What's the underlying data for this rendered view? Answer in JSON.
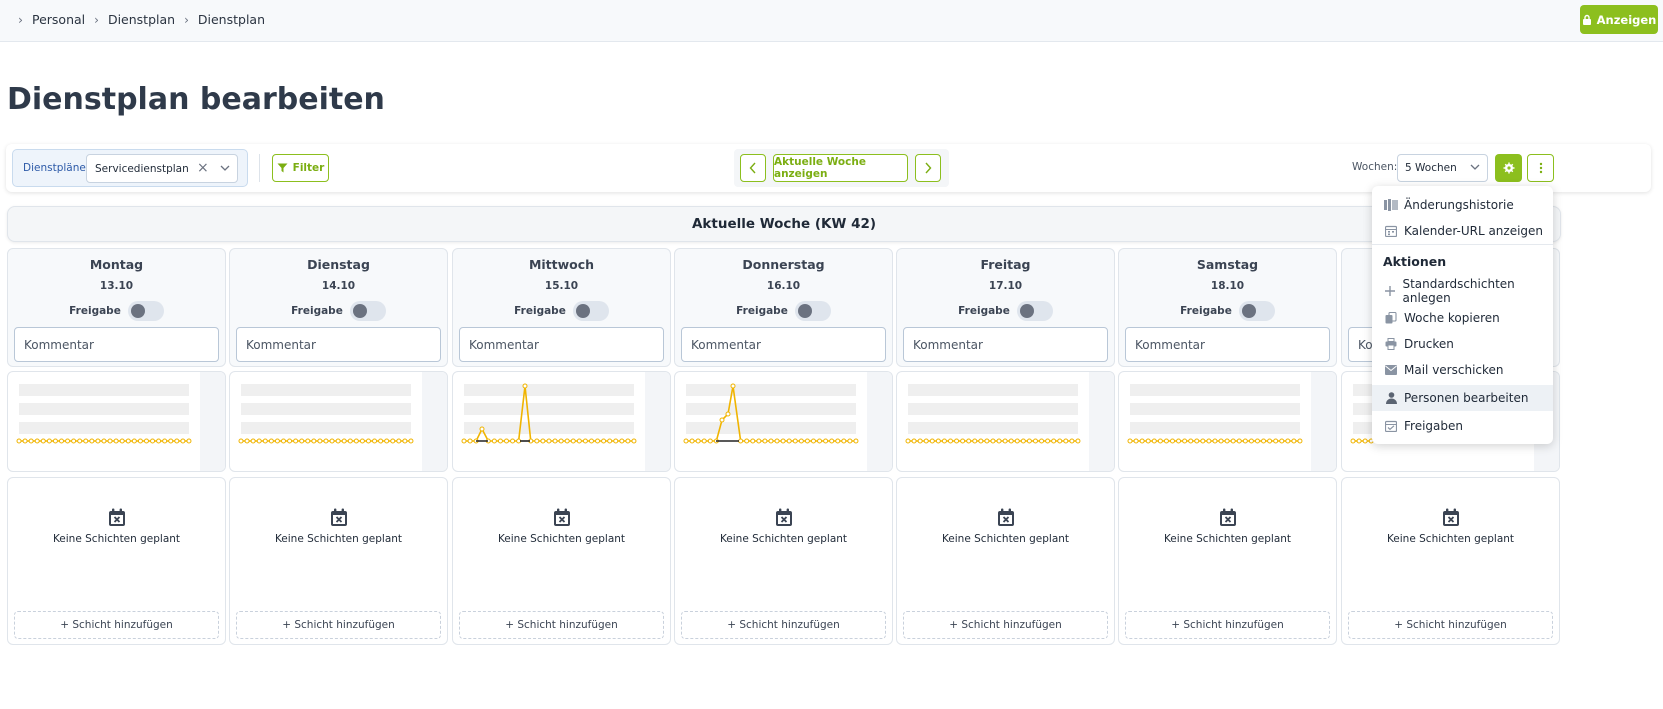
{
  "breadcrumb": {
    "items": [
      "Personal",
      "Dienstplan",
      "Dienstplan"
    ]
  },
  "header": {
    "show_button_label": "Anzeigen"
  },
  "page": {
    "title": "Dienstplan bearbeiten"
  },
  "toolbar": {
    "plans_label": "Dienstpläne:",
    "plans_value": "Servicedienstplan",
    "filter_label": "Filter",
    "current_week_label": "Aktuelle Woche anzeigen",
    "weeks_label": "Wochen:",
    "weeks_value": "5 Wochen"
  },
  "week": {
    "header": "Aktuelle Woche (KW 42)"
  },
  "days": [
    {
      "name": "Montag",
      "date": "13.10",
      "release_label": "Freigabe",
      "comment_placeholder": "Kommentar",
      "empty_text": "Keine Schichten geplant",
      "add_label": "+ Schicht hinzufügen"
    },
    {
      "name": "Dienstag",
      "date": "14.10",
      "release_label": "Freigabe",
      "comment_placeholder": "Kommentar",
      "empty_text": "Keine Schichten geplant",
      "add_label": "+ Schicht hinzufügen"
    },
    {
      "name": "Mittwoch",
      "date": "15.10",
      "release_label": "Freigabe",
      "comment_placeholder": "Kommentar",
      "empty_text": "Keine Schichten geplant",
      "add_label": "+ Schicht hinzufügen"
    },
    {
      "name": "Donnerstag",
      "date": "16.10",
      "release_label": "Freigabe",
      "comment_placeholder": "Kommentar",
      "empty_text": "Keine Schichten geplant",
      "add_label": "+ Schicht hinzufügen"
    },
    {
      "name": "Freitag",
      "date": "17.10",
      "release_label": "Freigabe",
      "comment_placeholder": "Kommentar",
      "empty_text": "Keine Schichten geplant",
      "add_label": "+ Schicht hinzufügen"
    },
    {
      "name": "Samstag",
      "date": "18.10",
      "release_label": "Freigabe",
      "comment_placeholder": "Kommentar",
      "empty_text": "Keine Schichten geplant",
      "add_label": "+ Schicht hinzufügen"
    },
    {
      "name": "",
      "date": "",
      "release_label": "",
      "comment_placeholder": "Ko",
      "empty_text": "Keine Schichten geplant",
      "add_label": "+ Schicht hinzufügen"
    }
  ],
  "menu": {
    "history": "Änderungshistorie",
    "calendar_url": "Kalender-URL anzeigen",
    "actions_heading": "Aktionen",
    "items": [
      "Standardschichten anlegen",
      "Woche kopieren",
      "Drucken",
      "Mail verschicken",
      "Personen bearbeiten",
      "Freigaben"
    ]
  },
  "colors": {
    "accent": "#8cbf1e",
    "chart_line": "#f0b400"
  }
}
